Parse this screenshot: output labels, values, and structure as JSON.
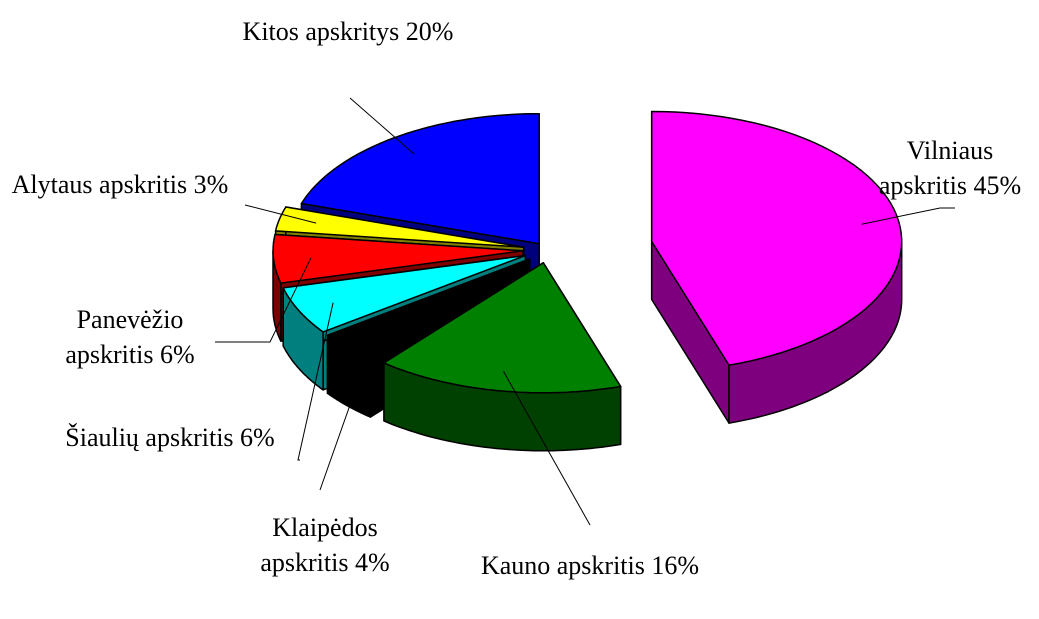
{
  "chart_data": {
    "type": "pie",
    "categories": [
      "Vilniaus apskritis",
      "Kauno apskritis",
      "Klaipėdos apskritis",
      "Šiaulių apskritis",
      "Panevėžio apskritis",
      "Alytaus apskritis",
      "Kitos apskritys"
    ],
    "values": [
      45,
      16,
      4,
      6,
      6,
      3,
      20
    ],
    "value_labels": [
      "45%",
      "16%",
      "4%",
      "6%",
      "6%",
      "3%",
      "20%"
    ],
    "colors": [
      "#ff00ff",
      "#008000",
      "#000000",
      "#00ffff",
      "#ff0000",
      "#ffff00",
      "#0000ff"
    ]
  }
}
